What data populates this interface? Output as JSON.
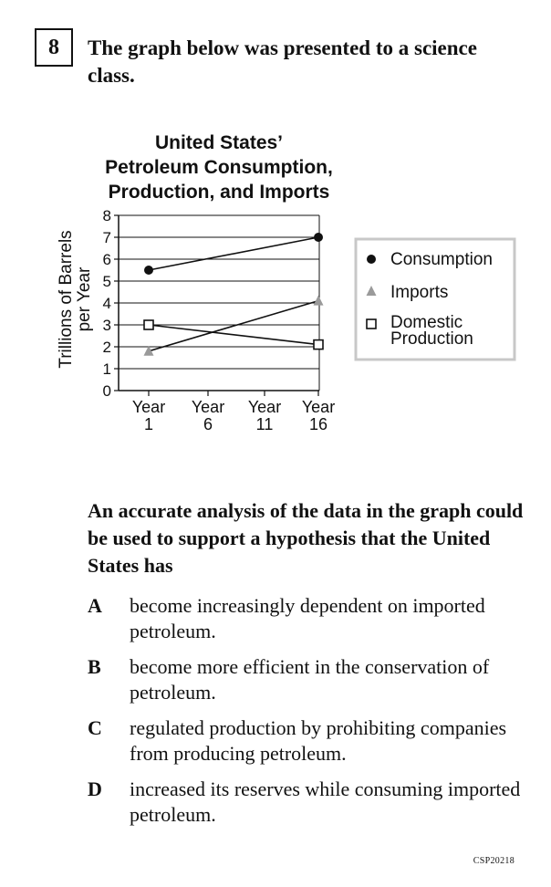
{
  "question": {
    "number": "8",
    "prompt": "The graph below was presented to a science class.",
    "stem": "An accurate analysis of the data in the graph could be used to support a hypothesis that the United States has",
    "options": [
      {
        "letter": "A",
        "text": "become increasingly dependent on imported petroleum."
      },
      {
        "letter": "B",
        "text": "become more efficient in the conservation of petroleum."
      },
      {
        "letter": "C",
        "text": "regulated production by prohibiting companies from producing petroleum."
      },
      {
        "letter": "D",
        "text": "increased its reserves while consuming imported petroleum."
      }
    ]
  },
  "chart_data": {
    "type": "line",
    "title_lines": [
      "United States’",
      "Petroleum Consumption,",
      "Production, and Imports"
    ],
    "ylabel_lines": [
      "Trillions of Barrels",
      "per Year"
    ],
    "xlabel": "",
    "ylim": [
      0,
      8
    ],
    "yticks": [
      "0",
      "1",
      "2",
      "3",
      "4",
      "5",
      "6",
      "7",
      "8"
    ],
    "xticks": [
      {
        "top": "Year",
        "bottom": "1"
      },
      {
        "top": "Year",
        "bottom": "6"
      },
      {
        "top": "Year",
        "bottom": "11"
      },
      {
        "top": "Year",
        "bottom": "16"
      }
    ],
    "xlim": [
      1,
      16
    ],
    "grid": "horizontal",
    "legend_position": "right",
    "series": [
      {
        "name": "Consumption",
        "marker": "filled-circle",
        "color": "#111111",
        "x": [
          1,
          16
        ],
        "values": [
          5.5,
          7.0
        ]
      },
      {
        "name": "Imports",
        "marker": "gray-triangle",
        "color": "#999999",
        "x": [
          1,
          16
        ],
        "values": [
          1.8,
          4.1
        ]
      },
      {
        "name": "Domestic Production",
        "legend_lines": [
          "Domestic",
          "Production"
        ],
        "marker": "open-square",
        "color": "#111111",
        "x": [
          1,
          16
        ],
        "values": [
          3.0,
          2.1
        ]
      }
    ]
  },
  "footer": {
    "code": "CSP20218"
  }
}
